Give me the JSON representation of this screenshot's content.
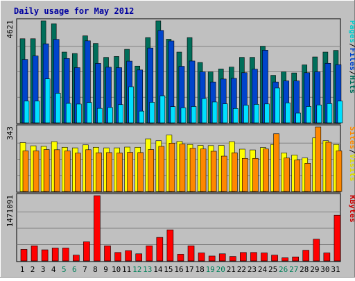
{
  "chart_data": {
    "type": "bar",
    "title": "Daily usage for May 2012",
    "days": [
      "1",
      "2",
      "3",
      "4",
      "5",
      "6",
      "7",
      "8",
      "9",
      "10",
      "11",
      "12",
      "13",
      "14",
      "15",
      "16",
      "17",
      "18",
      "19",
      "20",
      "21",
      "22",
      "23",
      "24",
      "25",
      "26",
      "27",
      "28",
      "29",
      "30",
      "31"
    ],
    "weekend_days": [
      "5",
      "6",
      "12",
      "13",
      "19",
      "20",
      "26",
      "27"
    ],
    "panels": [
      {
        "id": "top",
        "ymax_label": "4621",
        "ymax": 4621,
        "right_labels": [
          {
            "text": "Pages",
            "color": "#00CCCC"
          },
          {
            "text": "/",
            "color": "#000000"
          },
          {
            "text": "Files",
            "color": "#0044CC"
          },
          {
            "text": "/",
            "color": "#000000"
          },
          {
            "text": "Hits",
            "color": "#006E5A"
          }
        ],
        "series": [
          {
            "name": "Hits",
            "color": "#006E5A",
            "values": [
              3810,
              3810,
              4621,
              4490,
              3205,
              3140,
              3940,
              3595,
              2965,
              3005,
              3330,
              2570,
              3860,
              4621,
              3790,
              3205,
              3860,
              2735,
              2310,
              2440,
              2525,
              2965,
              2965,
              3470,
              2150,
              2310,
              2260,
              2625,
              2985,
              3205,
              3280
            ]
          },
          {
            "name": "Files",
            "color": "#0044CC",
            "values": [
              2870,
              3030,
              3580,
              3780,
              2915,
              2500,
              3715,
              2690,
              2520,
              2500,
              2795,
              2395,
              3390,
              4185,
              3710,
              2560,
              2800,
              2310,
              1850,
              1985,
              2015,
              2270,
              2430,
              3290,
              1850,
              1900,
              1900,
              2270,
              2315,
              2695,
              2635
            ]
          },
          {
            "name": "Pages",
            "color": "#00E0FF",
            "values": [
              985,
              985,
              1990,
              1340,
              880,
              850,
              920,
              655,
              695,
              825,
              1635,
              530,
              930,
              1225,
              735,
              680,
              740,
              1100,
              945,
              860,
              650,
              795,
              835,
              855,
              1575,
              905,
              440,
              740,
              810,
              870,
              985
            ]
          }
        ]
      },
      {
        "id": "mid",
        "ymax_label": "343",
        "ymax": 343,
        "right_labels": [
          {
            "text": "Sites",
            "color": "#FF8800"
          },
          {
            "text": "/",
            "color": "#000000"
          },
          {
            "text": "Visits",
            "color": "#DDDD00"
          }
        ],
        "series": [
          {
            "name": "Visits",
            "color": "#FFFF00",
            "values": [
              260,
              243,
              240,
              265,
              235,
              232,
              248,
              235,
              232,
              232,
              236,
              235,
              280,
              270,
              300,
              266,
              250,
              245,
              244,
              245,
              265,
              225,
              221,
              234,
              250,
              205,
              194,
              178,
              285,
              270,
              250
            ]
          },
          {
            "name": "Sites",
            "color": "#FF8800",
            "values": [
              216,
              216,
              223,
              222,
              216,
              204,
              222,
              206,
              207,
              205,
              208,
              207,
              223,
              240,
              257,
              252,
              230,
              226,
              214,
              188,
              206,
              176,
              176,
              226,
              307,
              178,
              167,
              150,
              343,
              262,
              216
            ]
          }
        ]
      },
      {
        "id": "bot",
        "ymax_label": "1471091",
        "ymax": 1471091,
        "right_labels": [
          {
            "text": "KBytes",
            "color": "#CC0000"
          }
        ],
        "series": [
          {
            "name": "KBytes",
            "color": "#FF0000",
            "values": [
              260000,
              340000,
              250000,
              290000,
              290000,
              130000,
              430000,
              1471091,
              340000,
              190000,
              230000,
              160000,
              340000,
              530000,
              700000,
              150000,
              340000,
              180000,
              110000,
              160000,
              100000,
              190000,
              190000,
              180000,
              130000,
              70000,
              90000,
              240000,
              490000,
              180000,
              1030000
            ]
          }
        ]
      }
    ]
  }
}
